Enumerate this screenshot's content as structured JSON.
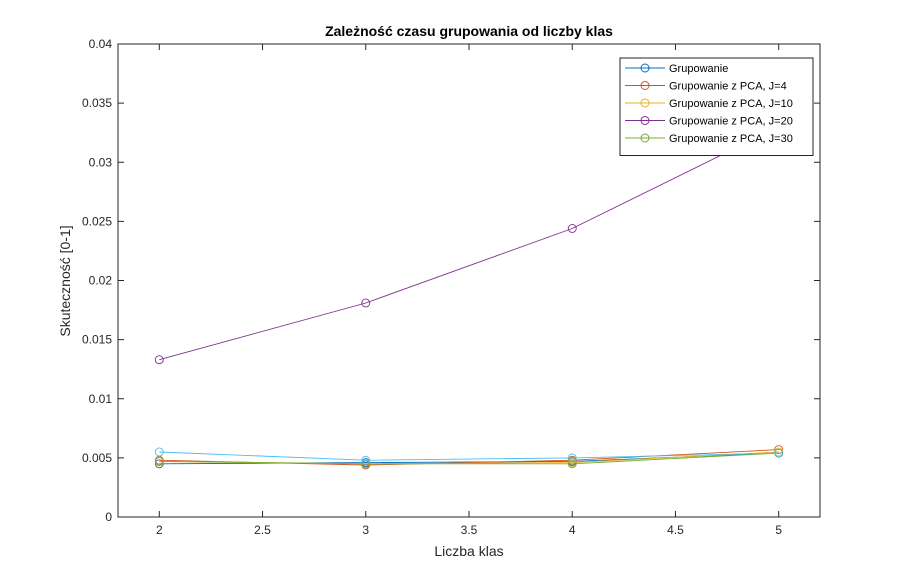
{
  "chart_data": {
    "type": "line",
    "title": "Zależność czasu grupowania od liczby klas",
    "xlabel": "Liczba klas",
    "ylabel": "Skuteczność [0-1]",
    "xlim": [
      1.8,
      5.2
    ],
    "ylim": [
      0,
      0.04
    ],
    "xticks": [
      2,
      2.5,
      3,
      3.5,
      4,
      4.5,
      5
    ],
    "xtick_labels": [
      "2",
      "2.5",
      "3",
      "3.5",
      "4",
      "4.5",
      "5"
    ],
    "yticks": [
      0,
      0.005,
      0.01,
      0.015,
      0.02,
      0.025,
      0.03,
      0.035,
      0.04
    ],
    "ytick_labels": [
      "0",
      "0.005",
      "0.01",
      "0.015",
      "0.02",
      "0.025",
      "0.03",
      "0.035",
      "0.04"
    ],
    "grid": false,
    "legend_position": "top-right",
    "x": [
      2,
      3,
      4,
      5
    ],
    "series": [
      {
        "name": "Grupowanie",
        "color": "#0072BD",
        "values": [
          0.0045,
          0.0046,
          0.0047,
          0.0054
        ]
      },
      {
        "name": "Grupowanie z PCA, J=4",
        "color": "#D95319",
        "values": [
          0.0048,
          0.0044,
          0.0048,
          0.0057
        ]
      },
      {
        "name": "Grupowanie z PCA, J=10",
        "color": "#EDB120",
        "values": [
          0.0047,
          0.0045,
          0.0046,
          0.0055
        ]
      },
      {
        "name": "Grupowanie z PCA, J=20",
        "color": "#7E2F8E",
        "values": [
          0.0133,
          0.0181,
          0.0244,
          0.033
        ]
      },
      {
        "name": "Grupowanie z PCA, J=30",
        "color": "#77AC30",
        "values": [
          0.0047,
          0.0045,
          0.0045,
          0.0054
        ]
      },
      {
        "name": "",
        "color": "#4DBEEE",
        "values": [
          0.0055,
          0.0048,
          0.005,
          0.0054
        ]
      }
    ]
  }
}
